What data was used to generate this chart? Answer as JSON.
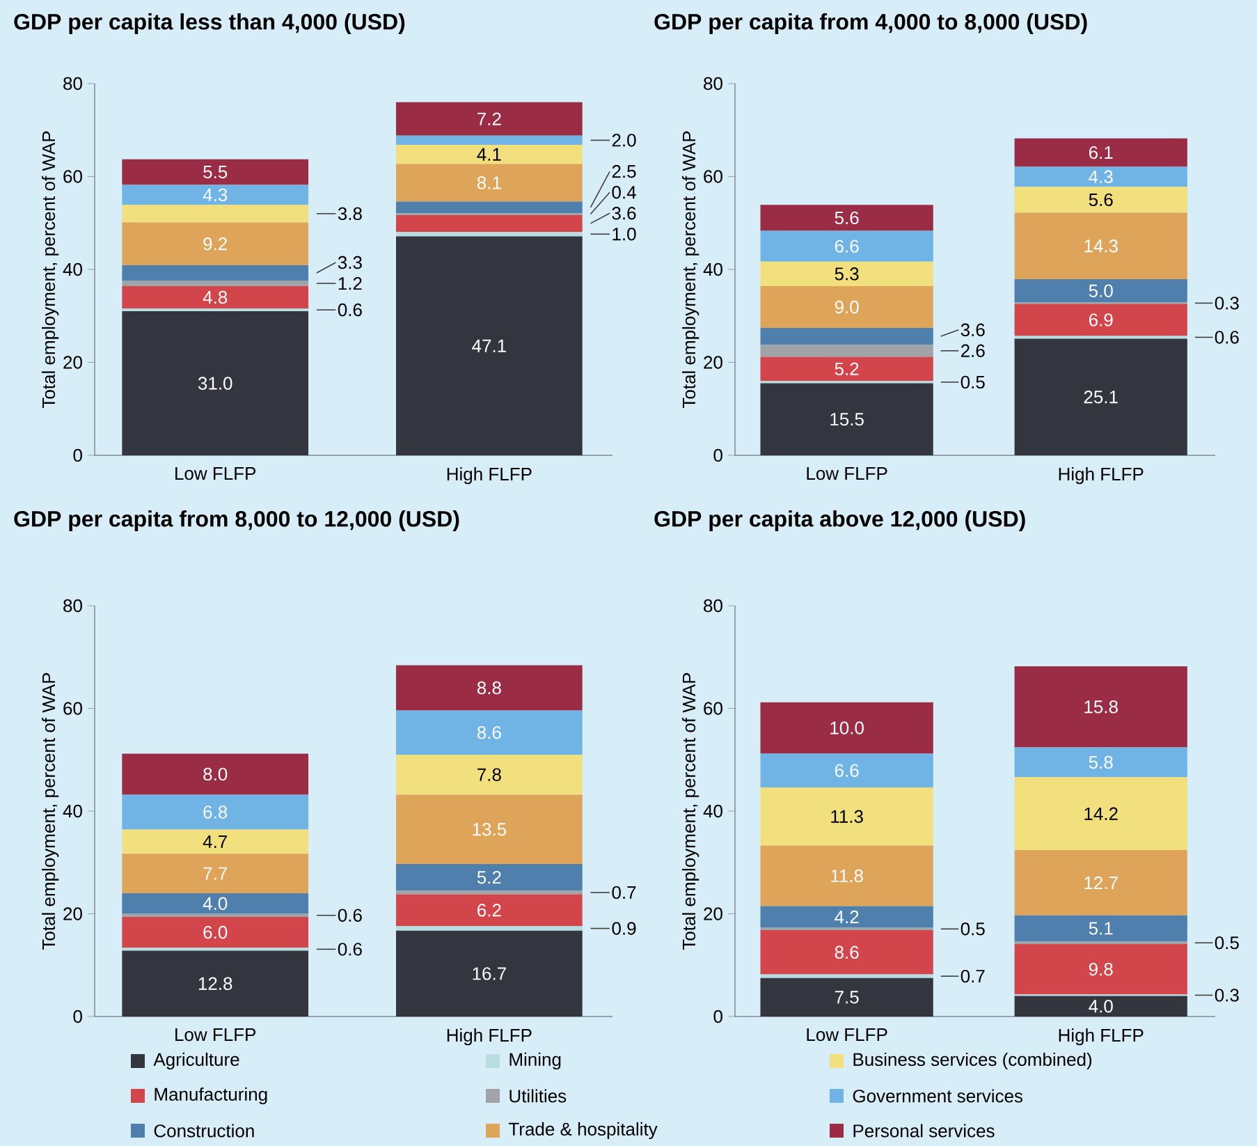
{
  "chart_data": [
    {
      "type": "bar",
      "stacked": true,
      "title": "GDP per capita less than 4,000 (USD)",
      "ylabel": "Total employment, percent of WAP",
      "categories": [
        "Low FLFP",
        "High FLFP"
      ],
      "ylim": [
        0,
        80
      ],
      "yticks": [
        0,
        20,
        40,
        60,
        80
      ],
      "legend": "bottom",
      "series": [
        {
          "name": "Agriculture",
          "color": "#33363f",
          "values": [
            31.0,
            47.1
          ],
          "value_labels": [
            "31.0",
            "47.1"
          ]
        },
        {
          "name": "Mining",
          "color": "#b7dde0",
          "values": [
            0.6,
            1.0
          ],
          "value_labels": [
            "0.6",
            "1.0"
          ]
        },
        {
          "name": "Manufacturing",
          "color": "#d2454b",
          "values": [
            4.8,
            3.6
          ],
          "value_labels": [
            "4.8",
            "3.6"
          ]
        },
        {
          "name": "Utilities",
          "color": "#a0a3a8",
          "values": [
            1.2,
            0.4
          ],
          "value_labels": [
            "1.2",
            "0.4"
          ]
        },
        {
          "name": "Construction",
          "color": "#4f7fad",
          "values": [
            3.3,
            2.5
          ],
          "value_labels": [
            "3.3",
            "2.5"
          ]
        },
        {
          "name": "Trade & hospitality",
          "color": "#dea45a",
          "values": [
            9.2,
            8.1
          ],
          "value_labels": [
            "9.2",
            "8.1"
          ]
        },
        {
          "name": "Business services (combined)",
          "color": "#f2e07e",
          "values": [
            3.8,
            4.1
          ],
          "value_labels": [
            "3.8",
            "4.1"
          ]
        },
        {
          "name": "Government services",
          "color": "#6fb4e4",
          "values": [
            4.3,
            2.0
          ],
          "value_labels": [
            "4.3",
            "2.0"
          ]
        },
        {
          "name": "Personal services",
          "color": "#9b2c45",
          "values": [
            5.5,
            7.2
          ],
          "value_labels": [
            "5.5",
            "7.2"
          ]
        }
      ]
    },
    {
      "type": "bar",
      "stacked": true,
      "title": "GDP per capita from 4,000 to 8,000 (USD)",
      "ylabel": "Total employment, percent of WAP",
      "categories": [
        "Low FLFP",
        "High FLFP"
      ],
      "ylim": [
        0,
        80
      ],
      "yticks": [
        0,
        20,
        40,
        60,
        80
      ],
      "series": [
        {
          "color": "#33363f",
          "values": [
            15.5,
            25.1
          ],
          "value_labels": [
            "15.5",
            "25.1"
          ]
        },
        {
          "color": "#b7dde0",
          "values": [
            0.5,
            0.6
          ],
          "value_labels": [
            "0.5",
            "0.6"
          ]
        },
        {
          "color": "#d2454b",
          "values": [
            5.2,
            6.9
          ],
          "value_labels": [
            "5.2",
            "6.9"
          ]
        },
        {
          "color": "#a0a3a8",
          "values": [
            2.6,
            0.3
          ],
          "value_labels": [
            "2.6",
            "0.3"
          ]
        },
        {
          "color": "#4f7fad",
          "values": [
            3.6,
            5.0
          ],
          "value_labels": [
            "3.6",
            "5.0"
          ]
        },
        {
          "color": "#dea45a",
          "values": [
            9.0,
            14.3
          ],
          "value_labels": [
            "9.0",
            "14.3"
          ]
        },
        {
          "color": "#f2e07e",
          "values": [
            5.3,
            5.6
          ],
          "value_labels": [
            "5.3",
            "5.6"
          ]
        },
        {
          "color": "#6fb4e4",
          "values": [
            6.6,
            4.3
          ],
          "value_labels": [
            "6.6",
            "4.3"
          ]
        },
        {
          "color": "#9b2c45",
          "values": [
            5.6,
            6.1
          ],
          "value_labels": [
            "5.6",
            "6.1"
          ]
        }
      ]
    },
    {
      "type": "bar",
      "stacked": true,
      "title": "GDP per capita from 8,000 to 12,000 (USD)",
      "ylabel": "Total employment, percent of WAP",
      "categories": [
        "Low FLFP",
        "High FLFP"
      ],
      "ylim": [
        0,
        80
      ],
      "yticks": [
        0,
        20,
        40,
        60,
        80
      ],
      "series": [
        {
          "color": "#33363f",
          "values": [
            12.8,
            16.7
          ],
          "value_labels": [
            "12.8",
            "16.7"
          ]
        },
        {
          "color": "#b7dde0",
          "values": [
            0.6,
            0.9
          ],
          "value_labels": [
            "0.6",
            "0.9"
          ]
        },
        {
          "color": "#d2454b",
          "values": [
            6.0,
            6.2
          ],
          "value_labels": [
            "6.0",
            "6.2"
          ]
        },
        {
          "color": "#a0a3a8",
          "values": [
            0.6,
            0.7
          ],
          "value_labels": [
            "0.6",
            "0.7"
          ]
        },
        {
          "color": "#4f7fad",
          "values": [
            4.0,
            5.2
          ],
          "value_labels": [
            "4.0",
            "5.2"
          ]
        },
        {
          "color": "#dea45a",
          "values": [
            7.7,
            13.5
          ],
          "value_labels": [
            "7.7",
            "13.5"
          ]
        },
        {
          "color": "#f2e07e",
          "values": [
            4.7,
            7.8
          ],
          "value_labels": [
            "4.7",
            "7.8"
          ]
        },
        {
          "color": "#6fb4e4",
          "values": [
            6.8,
            8.6
          ],
          "value_labels": [
            "6.8",
            "8.6"
          ]
        },
        {
          "color": "#9b2c45",
          "values": [
            8.0,
            8.8
          ],
          "value_labels": [
            "8.0",
            "8.8"
          ]
        }
      ]
    },
    {
      "type": "bar",
      "stacked": true,
      "title": "GDP per capita above 12,000 (USD)",
      "ylabel": "Total employment, percent of WAP",
      "categories": [
        "Low FLFP",
        "High FLFP"
      ],
      "ylim": [
        0,
        80
      ],
      "yticks": [
        0,
        20,
        40,
        60,
        80
      ],
      "series": [
        {
          "color": "#33363f",
          "values": [
            7.5,
            4.0
          ],
          "value_labels": [
            "7.5",
            "4.0"
          ]
        },
        {
          "color": "#b7dde0",
          "values": [
            0.7,
            0.3
          ],
          "value_labels": [
            "0.7",
            "0.3"
          ]
        },
        {
          "color": "#d2454b",
          "values": [
            8.6,
            9.8
          ],
          "value_labels": [
            "8.6",
            "9.8"
          ]
        },
        {
          "color": "#a0a3a8",
          "values": [
            0.5,
            0.5
          ],
          "value_labels": [
            "0.5",
            "0.5"
          ]
        },
        {
          "color": "#4f7fad",
          "values": [
            4.2,
            5.1
          ],
          "value_labels": [
            "4.2",
            "5.1"
          ]
        },
        {
          "color": "#dea45a",
          "values": [
            11.8,
            12.7
          ],
          "value_labels": [
            "11.8",
            "12.7"
          ]
        },
        {
          "color": "#f2e07e",
          "values": [
            11.3,
            14.2
          ],
          "value_labels": [
            "11.3",
            "14.2"
          ]
        },
        {
          "color": "#6fb4e4",
          "values": [
            6.6,
            5.8
          ],
          "value_labels": [
            "6.6",
            "5.8"
          ]
        },
        {
          "color": "#9b2c45",
          "values": [
            10.0,
            15.8
          ],
          "value_labels": [
            "10.0",
            "15.8"
          ]
        }
      ]
    }
  ]
}
